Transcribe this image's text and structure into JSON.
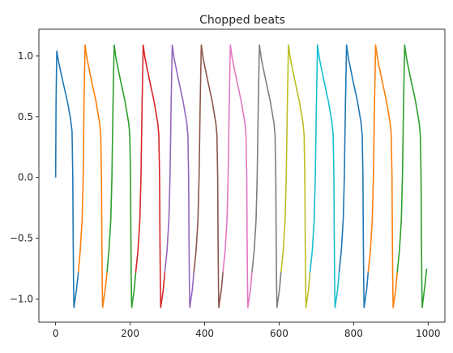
{
  "chart_data": {
    "type": "line",
    "title": "Chopped beats",
    "xlabel": "",
    "ylabel": "",
    "xlim": [
      -45,
      1045
    ],
    "ylim": [
      -1.19,
      1.22
    ],
    "xticks": [
      0,
      200,
      400,
      600,
      800,
      1000
    ],
    "yticks": [
      -1.0,
      -0.5,
      0.0,
      0.5,
      1.0
    ],
    "xtick_labels": [
      "0",
      "200",
      "400",
      "600",
      "800",
      "1000"
    ],
    "ytick_labels": [
      "−1.0",
      "−0.5",
      "0.0",
      "0.5",
      "1.0"
    ],
    "grid": false,
    "legend": "none",
    "beat_shape": {
      "note": "each series is one chopped beat; values listed as [x, y] in data units",
      "generic": true
    },
    "series": [
      {
        "color": "#1f77b4",
        "values": [
          [
            0,
            0.0
          ],
          [
            1,
            0.6
          ],
          [
            3,
            1.04
          ],
          [
            8,
            0.95
          ],
          [
            20,
            0.78
          ],
          [
            32,
            0.62
          ],
          [
            40,
            0.48
          ],
          [
            44,
            0.38
          ],
          [
            46,
            0.0
          ],
          [
            47,
            -0.5
          ],
          [
            48,
            -0.85
          ],
          [
            49,
            -1.07
          ],
          [
            56,
            -0.92
          ],
          [
            61,
            -0.78
          ]
        ]
      },
      {
        "color": "#ff7f0e",
        "values": [
          [
            61,
            -0.78
          ],
          [
            66,
            -0.6
          ],
          [
            71,
            -0.35
          ],
          [
            74,
            0.0
          ],
          [
            76,
            0.6
          ],
          [
            79,
            1.09
          ],
          [
            84,
            0.98
          ],
          [
            96,
            0.8
          ],
          [
            108,
            0.63
          ],
          [
            118,
            0.45
          ],
          [
            121,
            0.35
          ],
          [
            123,
            0.0
          ],
          [
            124,
            -0.5
          ],
          [
            125,
            -0.85
          ],
          [
            126,
            -1.07
          ],
          [
            133,
            -0.92
          ],
          [
            138,
            -0.78
          ]
        ]
      },
      {
        "color": "#2ca02c",
        "values": [
          [
            138,
            -0.78
          ],
          [
            143,
            -0.6
          ],
          [
            148,
            -0.35
          ],
          [
            151,
            0.0
          ],
          [
            154,
            0.6
          ],
          [
            157,
            1.09
          ],
          [
            162,
            0.98
          ],
          [
            174,
            0.8
          ],
          [
            186,
            0.63
          ],
          [
            196,
            0.45
          ],
          [
            199,
            0.35
          ],
          [
            201,
            0.0
          ],
          [
            202,
            -0.5
          ],
          [
            203,
            -0.85
          ],
          [
            204,
            -1.07
          ],
          [
            211,
            -0.92
          ],
          [
            215,
            -0.78
          ]
        ]
      },
      {
        "color": "#d62728",
        "values": [
          [
            215,
            -0.78
          ],
          [
            221,
            -0.6
          ],
          [
            226,
            -0.35
          ],
          [
            229,
            0.0
          ],
          [
            232,
            0.6
          ],
          [
            235,
            1.09
          ],
          [
            240,
            0.98
          ],
          [
            252,
            0.8
          ],
          [
            264,
            0.63
          ],
          [
            274,
            0.45
          ],
          [
            277,
            0.35
          ],
          [
            279,
            0.0
          ],
          [
            280,
            -0.5
          ],
          [
            281,
            -0.85
          ],
          [
            282,
            -1.07
          ],
          [
            289,
            -0.92
          ],
          [
            293,
            -0.78
          ]
        ]
      },
      {
        "color": "#9467bd",
        "values": [
          [
            293,
            -0.78
          ],
          [
            299,
            -0.6
          ],
          [
            304,
            -0.35
          ],
          [
            307,
            0.0
          ],
          [
            310,
            0.6
          ],
          [
            313,
            1.09
          ],
          [
            318,
            0.98
          ],
          [
            330,
            0.8
          ],
          [
            342,
            0.63
          ],
          [
            352,
            0.45
          ],
          [
            355,
            0.35
          ],
          [
            357,
            0.0
          ],
          [
            358,
            -0.5
          ],
          [
            359,
            -0.85
          ],
          [
            360,
            -1.07
          ],
          [
            367,
            -0.92
          ],
          [
            371,
            -0.78
          ]
        ]
      },
      {
        "color": "#8c564b",
        "values": [
          [
            371,
            -0.78
          ],
          [
            377,
            -0.6
          ],
          [
            382,
            -0.35
          ],
          [
            385,
            0.0
          ],
          [
            388,
            0.6
          ],
          [
            391,
            1.09
          ],
          [
            396,
            0.98
          ],
          [
            408,
            0.8
          ],
          [
            420,
            0.63
          ],
          [
            430,
            0.45
          ],
          [
            433,
            0.35
          ],
          [
            435,
            0.0
          ],
          [
            436,
            -0.5
          ],
          [
            437,
            -0.85
          ],
          [
            438,
            -1.07
          ],
          [
            445,
            -0.92
          ],
          [
            449,
            -0.78
          ]
        ]
      },
      {
        "color": "#e377c2",
        "values": [
          [
            449,
            -0.78
          ],
          [
            455,
            -0.6
          ],
          [
            460,
            -0.35
          ],
          [
            463,
            0.0
          ],
          [
            466,
            0.6
          ],
          [
            469,
            1.09
          ],
          [
            474,
            0.98
          ],
          [
            486,
            0.8
          ],
          [
            498,
            0.63
          ],
          [
            508,
            0.45
          ],
          [
            511,
            0.35
          ],
          [
            513,
            0.0
          ],
          [
            514,
            -0.5
          ],
          [
            515,
            -0.85
          ],
          [
            516,
            -1.07
          ],
          [
            523,
            -0.92
          ],
          [
            527,
            -0.78
          ]
        ]
      },
      {
        "color": "#7f7f7f",
        "values": [
          [
            527,
            -0.78
          ],
          [
            533,
            -0.6
          ],
          [
            538,
            -0.35
          ],
          [
            541,
            0.0
          ],
          [
            544,
            0.6
          ],
          [
            547,
            1.09
          ],
          [
            552,
            0.98
          ],
          [
            564,
            0.8
          ],
          [
            576,
            0.63
          ],
          [
            586,
            0.45
          ],
          [
            589,
            0.35
          ],
          [
            591,
            0.0
          ],
          [
            592,
            -0.5
          ],
          [
            593,
            -0.85
          ],
          [
            594,
            -1.07
          ],
          [
            601,
            -0.92
          ],
          [
            605,
            -0.78
          ]
        ]
      },
      {
        "color": "#bcbd22",
        "values": [
          [
            605,
            -0.78
          ],
          [
            611,
            -0.6
          ],
          [
            616,
            -0.35
          ],
          [
            619,
            0.0
          ],
          [
            622,
            0.6
          ],
          [
            625,
            1.09
          ],
          [
            630,
            0.98
          ],
          [
            642,
            0.8
          ],
          [
            654,
            0.63
          ],
          [
            664,
            0.45
          ],
          [
            667,
            0.35
          ],
          [
            669,
            0.0
          ],
          [
            670,
            -0.5
          ],
          [
            671,
            -0.85
          ],
          [
            672,
            -1.07
          ],
          [
            679,
            -0.92
          ],
          [
            683,
            -0.78
          ]
        ]
      },
      {
        "color": "#17becf",
        "values": [
          [
            683,
            -0.78
          ],
          [
            689,
            -0.6
          ],
          [
            694,
            -0.35
          ],
          [
            697,
            0.0
          ],
          [
            700,
            0.6
          ],
          [
            703,
            1.09
          ],
          [
            708,
            0.98
          ],
          [
            720,
            0.8
          ],
          [
            732,
            0.63
          ],
          [
            742,
            0.45
          ],
          [
            745,
            0.35
          ],
          [
            747,
            0.0
          ],
          [
            748,
            -0.5
          ],
          [
            749,
            -0.85
          ],
          [
            750,
            -1.07
          ],
          [
            757,
            -0.92
          ],
          [
            761,
            -0.78
          ]
        ]
      },
      {
        "color": "#1f77b4",
        "values": [
          [
            761,
            -0.78
          ],
          [
            767,
            -0.6
          ],
          [
            772,
            -0.35
          ],
          [
            775,
            0.0
          ],
          [
            778,
            0.6
          ],
          [
            781,
            1.09
          ],
          [
            786,
            0.98
          ],
          [
            798,
            0.8
          ],
          [
            810,
            0.63
          ],
          [
            820,
            0.45
          ],
          [
            823,
            0.35
          ],
          [
            825,
            0.0
          ],
          [
            826,
            -0.5
          ],
          [
            827,
            -0.85
          ],
          [
            828,
            -1.07
          ],
          [
            835,
            -0.92
          ],
          [
            839,
            -0.78
          ]
        ]
      },
      {
        "color": "#ff7f0e",
        "values": [
          [
            839,
            -0.78
          ],
          [
            845,
            -0.6
          ],
          [
            850,
            -0.35
          ],
          [
            853,
            0.0
          ],
          [
            856,
            0.6
          ],
          [
            859,
            1.09
          ],
          [
            864,
            0.98
          ],
          [
            876,
            0.8
          ],
          [
            888,
            0.63
          ],
          [
            898,
            0.45
          ],
          [
            901,
            0.35
          ],
          [
            903,
            0.0
          ],
          [
            904,
            -0.5
          ],
          [
            905,
            -0.85
          ],
          [
            906,
            -1.07
          ],
          [
            913,
            -0.92
          ],
          [
            917,
            -0.78
          ]
        ]
      },
      {
        "color": "#2ca02c",
        "values": [
          [
            917,
            -0.78
          ],
          [
            923,
            -0.6
          ],
          [
            928,
            -0.35
          ],
          [
            931,
            0.0
          ],
          [
            934,
            0.6
          ],
          [
            937,
            1.09
          ],
          [
            942,
            0.98
          ],
          [
            954,
            0.8
          ],
          [
            966,
            0.63
          ],
          [
            976,
            0.45
          ],
          [
            979,
            0.35
          ],
          [
            981,
            0.0
          ],
          [
            982,
            -0.5
          ],
          [
            983,
            -0.85
          ],
          [
            984,
            -1.07
          ],
          [
            988,
            -0.97
          ],
          [
            992,
            -0.87
          ],
          [
            996,
            -0.75
          ]
        ]
      }
    ]
  }
}
